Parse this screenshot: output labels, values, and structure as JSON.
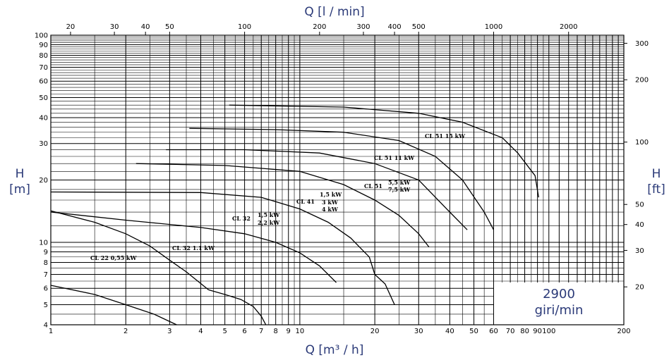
{
  "chart_data": {
    "type": "line",
    "title": "",
    "xlabel": "Q [m³ / h]",
    "xlabel_top": "Q [l / min]",
    "ylabel_left_unit": "H",
    "ylabel_left_sub": "[m]",
    "ylabel_right_unit": "H",
    "ylabel_right_sub": "[ft]",
    "x_scale": "log",
    "y_scale": "log",
    "xlim": [
      1,
      200
    ],
    "ylim": [
      4,
      100
    ],
    "x_ticks": [
      "1",
      "2",
      "3",
      "4",
      "5",
      "6",
      "7",
      "8",
      "9",
      "10",
      "20",
      "30",
      "40",
      "50",
      "60",
      "70",
      "80",
      "90",
      "100",
      "200"
    ],
    "x_top_ticks": [
      "20",
      "30",
      "40",
      "50",
      "100",
      "200",
      "300",
      "400",
      "500",
      "1000",
      "2000"
    ],
    "y_ticks": [
      "4",
      "5",
      "6",
      "7",
      "8",
      "9",
      "10",
      "20",
      "30",
      "40",
      "50",
      "60",
      "70",
      "80",
      "90",
      "100"
    ],
    "y_right_ticks": [
      "20",
      "30",
      "40",
      "50",
      "100",
      "200",
      "300"
    ],
    "speed_value": "2900",
    "speed_unit": "giri/min",
    "series": [
      {
        "name": "CL 22  0,55 kW",
        "curves": [
          [
            [
              1,
              6.2
            ],
            [
              1.5,
              5.6
            ],
            [
              2,
              5
            ],
            [
              2.6,
              4.5
            ],
            [
              3.2,
              4
            ]
          ],
          [
            [
              1,
              14.2
            ],
            [
              1.5,
              12.5
            ],
            [
              2,
              11
            ],
            [
              2.5,
              9.6
            ],
            [
              3,
              8.2
            ],
            [
              3.5,
              7.2
            ],
            [
              4.3,
              5.9
            ]
          ]
        ]
      },
      {
        "name": "CL 32  1,1 kW",
        "curves": [
          [
            [
              4.3,
              5.9
            ],
            [
              5,
              5.6
            ],
            [
              5.8,
              5.3
            ],
            [
              6.5,
              4.9
            ],
            [
              7,
              4.4
            ],
            [
              7.3,
              4
            ]
          ],
          [
            [
              1,
              14
            ],
            [
              2,
              12.8
            ],
            [
              4,
              11.8
            ],
            [
              6,
              11
            ],
            [
              8,
              10
            ],
            [
              10,
              8.9
            ],
            [
              12,
              7.7
            ],
            [
              14,
              6.4
            ]
          ]
        ]
      },
      {
        "name": "CL 32  1,5 kW  2,2 kW",
        "curves": [
          [
            [
              1,
              17.5
            ],
            [
              4,
              17.4
            ],
            [
              7,
              16.5
            ],
            [
              10,
              14.5
            ],
            [
              13,
              12.5
            ],
            [
              16,
              10.5
            ],
            [
              19,
              8.5
            ],
            [
              20,
              7
            ]
          ],
          [
            [
              20,
              7
            ],
            [
              22,
              6.3
            ],
            [
              24,
              5
            ]
          ]
        ]
      },
      {
        "name": "CL 41  1,5 kW  3 kW  4 kW",
        "curves": [
          [
            [
              2.2,
              24
            ],
            [
              5,
              23.5
            ],
            [
              10,
              22
            ],
            [
              15,
              19
            ],
            [
              20,
              16
            ],
            [
              25,
              13.5
            ],
            [
              30,
              11
            ],
            [
              33,
              9.5
            ]
          ],
          [
            [
              2.9,
              28
            ],
            [
              6,
              28
            ],
            [
              12,
              27
            ],
            [
              20,
              24
            ],
            [
              30,
              20
            ],
            [
              40,
              14
            ],
            [
              47,
              11.5
            ]
          ],
          [
            [
              3.6,
              35.5
            ],
            [
              8,
              35
            ],
            [
              15,
              34
            ],
            [
              25,
              31
            ],
            [
              35,
              26
            ],
            [
              45,
              20
            ],
            [
              55,
              14
            ],
            [
              60,
              11.5
            ]
          ]
        ]
      },
      {
        "name": "CL 51  5,5 kW  7,5 kW  11 kW  15 kW",
        "curves": [
          [
            [
              5.2,
              46
            ],
            [
              15,
              45
            ],
            [
              30,
              42
            ],
            [
              45,
              38
            ],
            [
              65,
              32
            ],
            [
              75,
              27
            ],
            [
              88,
              21
            ],
            [
              91,
              16.5
            ]
          ]
        ]
      }
    ]
  }
}
